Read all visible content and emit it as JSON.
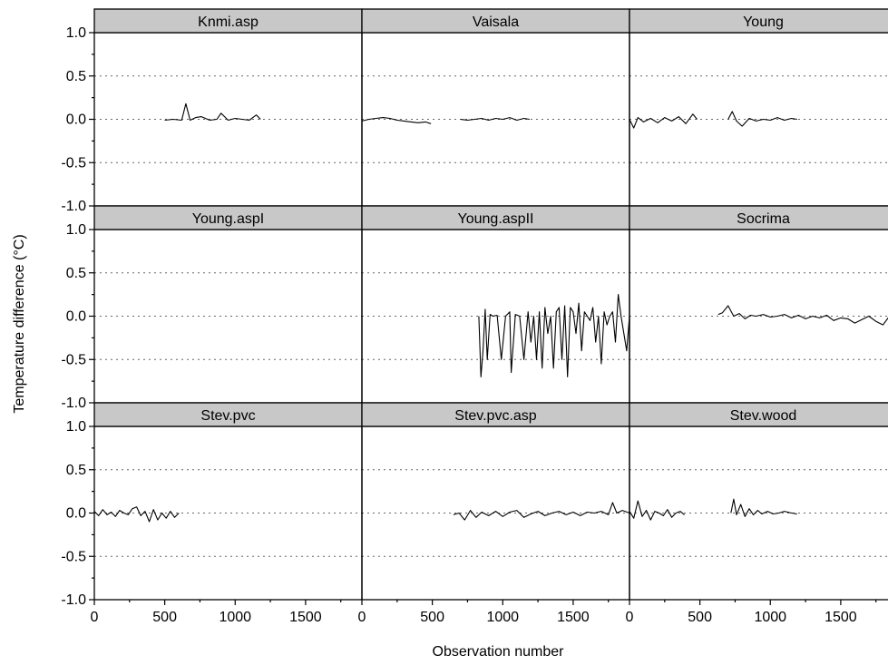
{
  "chart_data": {
    "type": "line",
    "layout": "facet-grid-3x3",
    "xlabel": "Observation number",
    "ylabel": "Temperature difference (°C)",
    "xlim": [
      0,
      1900
    ],
    "ylim": [
      -1.0,
      1.0
    ],
    "x_ticks": [
      0,
      500,
      1000,
      1500
    ],
    "x_tick_labels": [
      "0",
      "500",
      "1000",
      "1500"
    ],
    "y_ticks": [
      -1.0,
      -0.5,
      0.0,
      0.5,
      1.0
    ],
    "y_tick_labels": [
      "-1.0",
      "-0.5",
      "0.0",
      "0.5",
      "1.0"
    ],
    "grid": "dotted horizontal at y ticks",
    "colors": {
      "line": "#000000",
      "strip": "#c8c8c8",
      "grid": "#666666"
    },
    "panels": [
      {
        "name": "Knmi.asp",
        "segments": [
          {
            "x": [
              500,
              560,
              620,
              650,
              680,
              720,
              760,
              820,
              870,
              900,
              950,
              1000,
              1050,
              1100,
              1150,
              1180
            ],
            "y": [
              -0.01,
              0.0,
              -0.01,
              0.18,
              -0.01,
              0.02,
              0.03,
              -0.01,
              0.0,
              0.07,
              -0.01,
              0.01,
              0.0,
              -0.01,
              0.05,
              0.0
            ]
          }
        ]
      },
      {
        "name": "Vaisala",
        "segments": [
          {
            "x": [
              0,
              50,
              100,
              150,
              200,
              250,
              300,
              350,
              400,
              450,
              490
            ],
            "y": [
              -0.02,
              0.0,
              0.01,
              0.02,
              0.01,
              -0.01,
              -0.02,
              -0.03,
              -0.04,
              -0.03,
              -0.05
            ]
          },
          {
            "x": [
              700,
              750,
              800,
              850,
              900,
              950,
              1000,
              1050,
              1100,
              1150,
              1190
            ],
            "y": [
              0.0,
              -0.01,
              0.0,
              0.01,
              -0.01,
              0.01,
              0.0,
              0.02,
              -0.01,
              0.01,
              0.0
            ]
          }
        ]
      },
      {
        "name": "Young",
        "segments": [
          {
            "x": [
              0,
              30,
              60,
              100,
              150,
              200,
              250,
              300,
              350,
              400,
              450,
              480
            ],
            "y": [
              0.0,
              -0.1,
              0.02,
              -0.03,
              0.01,
              -0.04,
              0.02,
              -0.02,
              0.03,
              -0.05,
              0.06,
              0.0
            ]
          },
          {
            "x": [
              700,
              730,
              760,
              800,
              850,
              900,
              950,
              1000,
              1050,
              1100,
              1150,
              1190
            ],
            "y": [
              0.0,
              0.09,
              -0.02,
              -0.08,
              0.01,
              -0.02,
              0.0,
              -0.01,
              0.02,
              -0.01,
              0.01,
              0.0
            ]
          }
        ]
      },
      {
        "name": "Young.aspI",
        "segments": []
      },
      {
        "name": "Young.aspII",
        "segments": [
          {
            "x": [
              830,
              845,
              860,
              875,
              890,
              910,
              930,
              960,
              990,
              1020,
              1050,
              1060,
              1090,
              1120,
              1150,
              1180,
              1200,
              1220,
              1240,
              1260,
              1280,
              1300,
              1320,
              1340,
              1360,
              1380,
              1400,
              1420,
              1440,
              1460,
              1480,
              1500,
              1520,
              1540,
              1560,
              1580,
              1600,
              1620,
              1640,
              1660,
              1680,
              1700,
              1720,
              1740,
              1760,
              1780,
              1800,
              1820,
              1840,
              1860,
              1880,
              1900
            ],
            "y": [
              0.0,
              -0.7,
              -0.4,
              0.08,
              -0.5,
              0.02,
              0.0,
              0.01,
              -0.5,
              0.0,
              0.05,
              -0.65,
              0.02,
              0.0,
              -0.5,
              0.05,
              -0.3,
              0.0,
              -0.5,
              0.05,
              -0.6,
              0.1,
              -0.2,
              0.0,
              -0.6,
              0.05,
              0.1,
              -0.5,
              0.12,
              -0.7,
              0.1,
              0.05,
              -0.2,
              0.15,
              -0.4,
              0.05,
              0.0,
              -0.05,
              0.1,
              -0.3,
              0.0,
              -0.55,
              0.05,
              -0.1,
              0.0,
              0.05,
              -0.3,
              0.25,
              0.0,
              -0.2,
              -0.4,
              0.0
            ]
          }
        ]
      },
      {
        "name": "Socrima",
        "segments": [
          {
            "x": [
              630,
              660,
              700,
              740,
              780,
              820,
              860,
              900,
              950,
              1000,
              1050,
              1100,
              1150,
              1200,
              1250,
              1300,
              1350,
              1400,
              1450,
              1500,
              1550,
              1600,
              1650,
              1700,
              1750,
              1800,
              1850,
              1900
            ],
            "y": [
              0.02,
              0.04,
              0.12,
              0.0,
              0.03,
              -0.03,
              0.01,
              0.0,
              0.02,
              -0.01,
              0.0,
              0.02,
              -0.02,
              0.01,
              -0.03,
              0.0,
              -0.02,
              0.01,
              -0.05,
              -0.02,
              -0.03,
              -0.08,
              -0.04,
              0.0,
              -0.06,
              -0.1,
              0.01,
              -0.04
            ]
          }
        ]
      },
      {
        "name": "Stev.pvc",
        "segments": [
          {
            "x": [
              0,
              30,
              60,
              90,
              120,
              150,
              180,
              210,
              240,
              270,
              300,
              330,
              360,
              390,
              420,
              450,
              480,
              510,
              540,
              570,
              600
            ],
            "y": [
              0.02,
              -0.03,
              0.04,
              -0.02,
              0.01,
              -0.04,
              0.03,
              0.0,
              -0.02,
              0.05,
              0.07,
              -0.03,
              0.02,
              -0.1,
              0.04,
              -0.08,
              0.0,
              -0.06,
              0.02,
              -0.05,
              0.0
            ]
          }
        ]
      },
      {
        "name": "Stev.pvc.asp",
        "segments": [
          {
            "x": [
              650,
              690,
              730,
              770,
              810,
              850,
              900,
              950,
              1000,
              1050,
              1100,
              1150,
              1200,
              1250,
              1300,
              1350,
              1400,
              1450,
              1500,
              1550,
              1600,
              1650,
              1700,
              1750,
              1780,
              1810,
              1850,
              1900
            ],
            "y": [
              -0.02,
              0.0,
              -0.08,
              0.03,
              -0.05,
              0.01,
              -0.03,
              0.02,
              -0.04,
              0.01,
              0.03,
              -0.05,
              -0.01,
              0.02,
              -0.03,
              0.0,
              0.02,
              -0.02,
              0.01,
              -0.03,
              0.01,
              0.0,
              0.02,
              -0.02,
              0.12,
              0.0,
              0.03,
              0.0
            ]
          }
        ]
      },
      {
        "name": "Stev.wood",
        "segments": [
          {
            "x": [
              0,
              30,
              60,
              90,
              120,
              150,
              180,
              210,
              240,
              270,
              300,
              330,
              360,
              390
            ],
            "y": [
              0.02,
              -0.06,
              0.14,
              -0.04,
              0.03,
              -0.08,
              0.02,
              0.0,
              -0.03,
              0.04,
              -0.05,
              0.0,
              0.02,
              -0.02
            ]
          },
          {
            "x": [
              720,
              740,
              760,
              790,
              820,
              850,
              880,
              910,
              940,
              980,
              1020,
              1060,
              1100,
              1150,
              1190
            ],
            "y": [
              0.0,
              0.16,
              -0.02,
              0.1,
              -0.04,
              0.05,
              -0.02,
              0.03,
              -0.01,
              0.02,
              -0.01,
              0.0,
              0.02,
              0.0,
              -0.01
            ]
          }
        ]
      }
    ]
  }
}
